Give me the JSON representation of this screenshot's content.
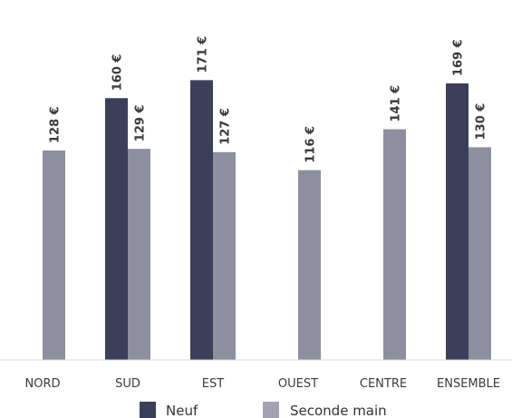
{
  "chart_data": {
    "type": "bar",
    "title": "",
    "xlabel": "",
    "ylabel": "",
    "categories": [
      "NORD",
      "SUD",
      "EST",
      "OUEST",
      "CENTRE",
      "ENSEMBLE"
    ],
    "series": [
      {
        "name": "Neuf",
        "color": "#3b3f5a",
        "values": [
          null,
          160,
          171,
          null,
          null,
          169
        ],
        "labels": [
          "",
          "160 €",
          "171 €",
          "",
          "",
          "169 €"
        ]
      },
      {
        "name": "Seconde main",
        "color": "#8d8f9e",
        "values": [
          128,
          129,
          127,
          116,
          141,
          130
        ],
        "labels": [
          "128 €",
          "129 €",
          "127 €",
          "116 €",
          "141 €",
          "130 €"
        ]
      }
    ],
    "ylim": [
      0,
      203
    ],
    "grid": false,
    "legend_position": "bottom"
  },
  "legend": {
    "items": [
      {
        "label": "Neuf",
        "color": "#3b3f5a"
      },
      {
        "label": "Seconde main",
        "color": "#a3a2b5"
      }
    ]
  }
}
